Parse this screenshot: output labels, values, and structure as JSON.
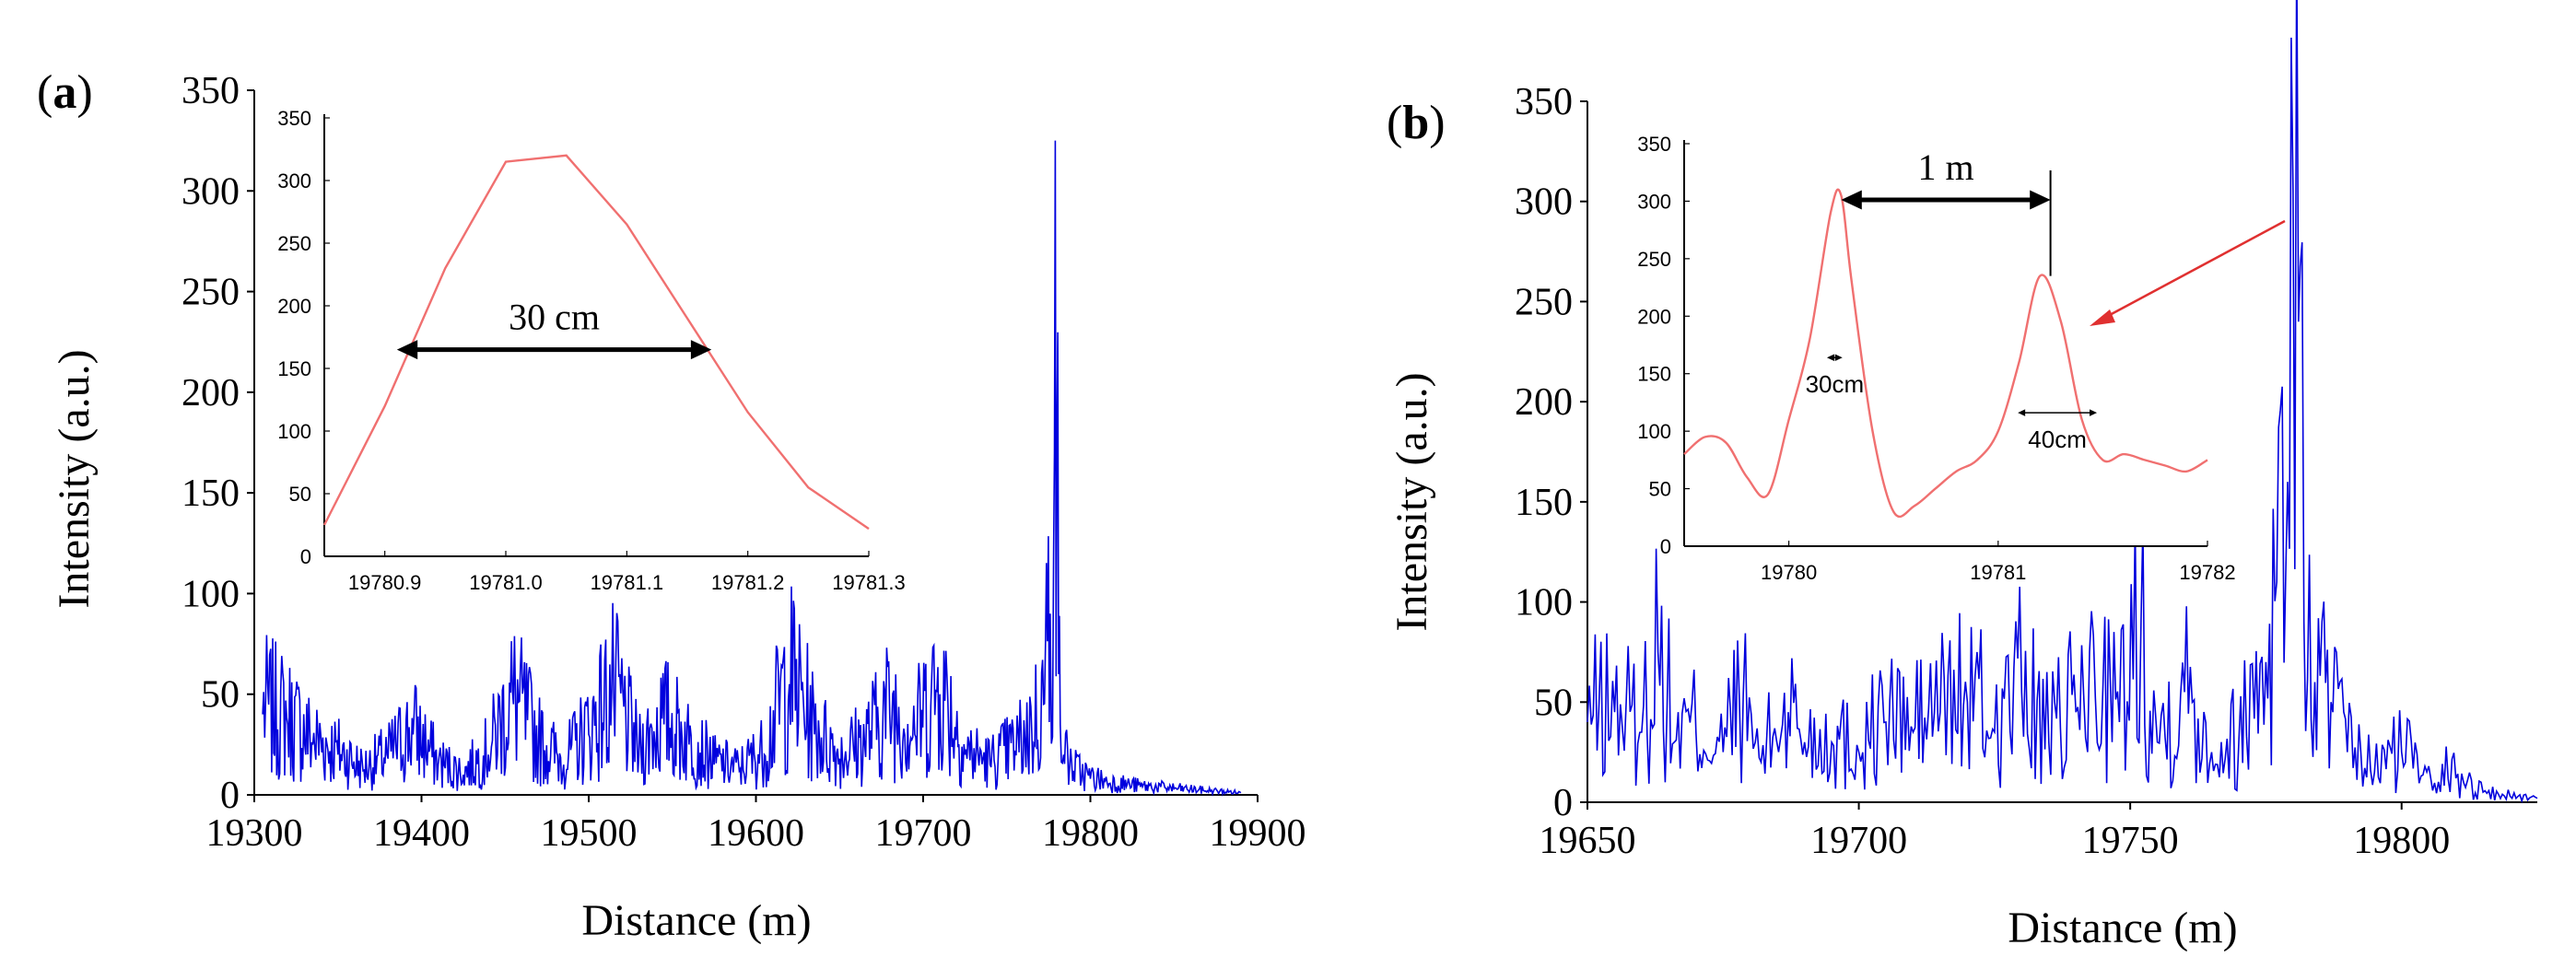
{
  "chart_data": [
    {
      "panel_label": "a",
      "type": "line",
      "xlabel": "Distance (m)",
      "ylabel": "Intensity (a.u.)",
      "xlim": [
        19300,
        19900
      ],
      "ylim": [
        0,
        350
      ],
      "x_ticks": [
        19300,
        19400,
        19500,
        19600,
        19700,
        19800,
        19900
      ],
      "y_ticks": [
        0,
        50,
        100,
        150,
        200,
        250,
        300,
        350
      ],
      "series": [
        {
          "name": "trace",
          "color": "#0000dd",
          "x": [
            19305,
            19320,
            19335,
            19350,
            19365,
            19380,
            19395,
            19410,
            19425,
            19440,
            19455,
            19470,
            19485,
            19500,
            19515,
            19530,
            19545,
            19560,
            19575,
            19590,
            19605,
            19620,
            19635,
            19650,
            19665,
            19680,
            19695,
            19710,
            19725,
            19740,
            19755,
            19765,
            19772,
            19776,
            19778,
            19779,
            19780,
            19781,
            19782,
            19784,
            19790,
            19800,
            19810,
            19830,
            19850,
            19870,
            19890
          ],
          "values": [
            40,
            35,
            25,
            20,
            12,
            18,
            30,
            15,
            10,
            20,
            45,
            25,
            15,
            30,
            48,
            20,
            35,
            25,
            15,
            12,
            20,
            55,
            30,
            18,
            25,
            40,
            30,
            50,
            20,
            15,
            22,
            30,
            45,
            90,
            120,
            325,
            180,
            60,
            35,
            20,
            12,
            8,
            6,
            4,
            3,
            2,
            1
          ]
        }
      ],
      "inset": {
        "type": "line",
        "xlim": [
          19780.85,
          19781.3
        ],
        "ylim": [
          0,
          350
        ],
        "x_ticks": [
          19780.9,
          19781.0,
          19781.1,
          19781.2,
          19781.3
        ],
        "x_tick_labels": [
          "19780.9",
          "19781.0",
          "19781.1",
          "19781.2",
          "19781.3"
        ],
        "y_ticks": [
          0,
          50,
          100,
          150,
          200,
          250,
          300,
          350
        ],
        "series": [
          {
            "name": "peak",
            "color": "#f07070",
            "x": [
              19780.85,
              19780.9,
              19780.95,
              19781.0,
              19781.05,
              19781.1,
              19781.15,
              19781.2,
              19781.25,
              19781.3
            ],
            "values": [
              25,
              120,
              230,
              315,
              320,
              265,
              190,
              115,
              55,
              22
            ]
          }
        ],
        "annotation": {
          "text": "30 cm",
          "x_start": 19780.91,
          "x_end": 19781.17,
          "y": 165
        }
      }
    },
    {
      "panel_label": "b",
      "type": "line",
      "xlabel": "Distance (m)",
      "ylabel": "Intensity (a.u.)",
      "xlim": [
        19650,
        19825
      ],
      "ylim": [
        0,
        350
      ],
      "x_ticks": [
        19650,
        19700,
        19750,
        19800
      ],
      "y_ticks": [
        0,
        50,
        100,
        150,
        200,
        250,
        300,
        350
      ],
      "series": [
        {
          "name": "trace",
          "color": "#0000dd",
          "x": [
            19650,
            19655,
            19660,
            19663,
            19666,
            19670,
            19675,
            19678,
            19682,
            19687,
            19690,
            19695,
            19700,
            19705,
            19710,
            19715,
            19720,
            19725,
            19730,
            19735,
            19740,
            19745,
            19748,
            19752,
            19755,
            19760,
            19765,
            19770,
            19775,
            19777,
            19779,
            19780,
            19781,
            19782,
            19784,
            19787,
            19790,
            19795,
            19800,
            19805,
            19810,
            19815,
            19820,
            19825
          ],
          "values": [
            40,
            45,
            35,
            75,
            30,
            35,
            25,
            50,
            20,
            45,
            30,
            30,
            25,
            40,
            35,
            45,
            50,
            35,
            55,
            30,
            45,
            60,
            40,
            90,
            30,
            55,
            25,
            30,
            70,
            110,
            160,
            305,
            240,
            90,
            60,
            50,
            25,
            15,
            25,
            18,
            12,
            5,
            3,
            2
          ]
        }
      ],
      "inset": {
        "type": "line",
        "xlim": [
          19779.5,
          19782
        ],
        "ylim": [
          0,
          350
        ],
        "x_ticks": [
          19780,
          19781,
          19782
        ],
        "x_tick_labels": [
          "19780",
          "19781",
          "19782"
        ],
        "y_ticks": [
          0,
          50,
          100,
          150,
          200,
          250,
          300,
          350
        ],
        "series": [
          {
            "name": "peaks",
            "color": "#f07070",
            "x": [
              19779.5,
              19779.6,
              19779.7,
              19779.8,
              19779.9,
              19780.0,
              19780.1,
              19780.2,
              19780.25,
              19780.3,
              19780.4,
              19780.5,
              19780.6,
              19780.7,
              19780.8,
              19780.9,
              19781.0,
              19781.1,
              19781.2,
              19781.3,
              19781.4,
              19781.5,
              19781.6,
              19781.7,
              19781.8,
              19781.9,
              19782.0
            ],
            "values": [
              80,
              95,
              90,
              60,
              45,
              110,
              180,
              290,
              305,
              230,
              100,
              30,
              35,
              50,
              65,
              75,
              100,
              160,
              235,
              195,
              110,
              75,
              80,
              75,
              70,
              65,
              75
            ]
          }
        ],
        "annotations": [
          {
            "text": "1 m",
            "x_start": 19780.25,
            "x_end": 19781.25,
            "y": 305
          },
          {
            "text": "30cm",
            "x_start": 19780.05,
            "x_end": 19780.3,
            "y": 160
          },
          {
            "text": "40cm",
            "x_start": 19781.05,
            "x_end": 19781.45,
            "y": 120
          }
        ]
      }
    }
  ]
}
